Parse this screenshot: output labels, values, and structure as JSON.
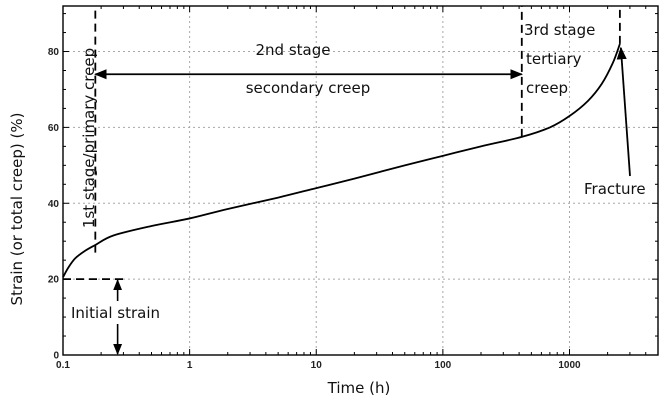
{
  "chart_data": {
    "type": "line",
    "title": "",
    "xlabel": "Time (h)",
    "ylabel": "Strain (or total creep) (%)",
    "xscale": "log",
    "xlim": [
      0.1,
      5000
    ],
    "ylim": [
      0,
      92
    ],
    "grid": true,
    "x_ticks": [
      0.1,
      1,
      10,
      100,
      1000
    ],
    "x_tick_labels": [
      "0.1",
      "1",
      "10",
      "100",
      "1000"
    ],
    "y_ticks": [
      0,
      20,
      40,
      60,
      80
    ],
    "y_tick_labels": [
      "0",
      "20",
      "40",
      "60",
      "80"
    ],
    "series": [
      {
        "x": [
          0.1,
          0.11,
          0.125,
          0.15,
          0.18,
          0.25,
          0.5,
          1,
          2,
          5,
          10,
          20,
          50,
          100,
          200,
          420,
          700,
          1000,
          1400,
          1800,
          2200,
          2500
        ],
        "y": [
          20.5,
          23,
          25.5,
          27.5,
          29,
          31.5,
          34,
          36,
          38.5,
          41.5,
          44,
          46.5,
          50,
          52.5,
          55,
          57.5,
          60,
          63,
          67,
          71.5,
          77,
          82
        ]
      }
    ],
    "stage_boundaries": [
      {
        "x": 0.18,
        "y_from": 27,
        "y_to": 92
      },
      {
        "x": 420,
        "y_from": 57.5,
        "y_to": 92
      },
      {
        "x": 2500,
        "y_from": 82,
        "y_to": 92
      }
    ],
    "initial_strain": {
      "y": 20,
      "x_end": 0.3,
      "arrow_x": 0.27
    },
    "secondary_arrow": {
      "y": 74,
      "x_from": 0.18,
      "x_to": 420
    },
    "annotations": {
      "stage1": "1st stage/primary creep",
      "stage2_line1": "2nd stage",
      "stage2_line2": "secondary creep",
      "stage3_line1": "3rd stage",
      "stage3_line2": "tertiary",
      "stage3_line3": "creep",
      "fracture": "Fracture",
      "initial": "Initial strain"
    }
  }
}
